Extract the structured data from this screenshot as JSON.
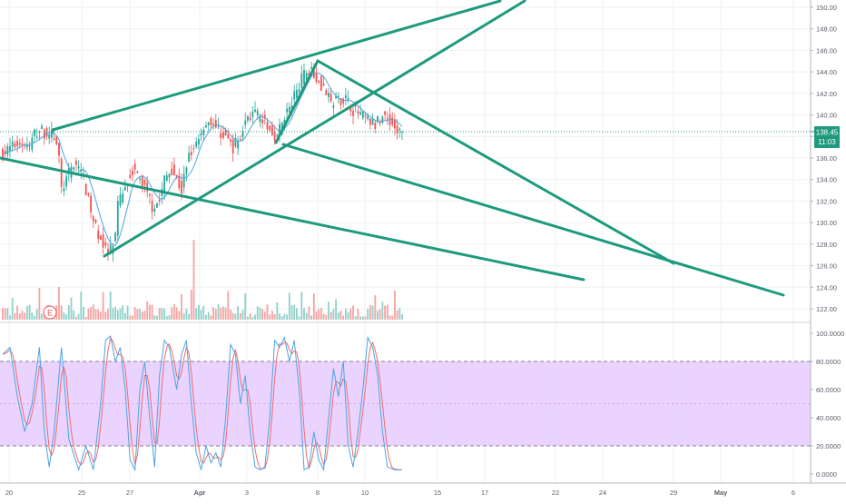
{
  "colors": {
    "up": "#26a69a",
    "down": "#ef5350",
    "vol_up": "#8fd1c9",
    "vol_down": "#f5a3a1",
    "ma": "#4fa3e0",
    "trendline": "#1e9a7e",
    "stoch_k": "#4fa3e0",
    "stoch_d": "#ef6c6c",
    "stoch_band": "#e3c6ff",
    "grid": "#eef0f3",
    "axis_text": "#5d606b",
    "price_tag": "#1e9a7e",
    "events_marker": "#ef5350"
  },
  "price_axis": {
    "ticks": [
      "150.00",
      "148.00",
      "146.00",
      "144.00",
      "142.00",
      "140.00",
      "138.00",
      "136.00",
      "134.00",
      "132.00",
      "130.00",
      "128.00",
      "126.00",
      "124.00",
      "122.00"
    ]
  },
  "stoch_axis": {
    "ticks": [
      "100.0000",
      "80.0000",
      "60.0000",
      "40.0000",
      "20.0000",
      "0.0000"
    ]
  },
  "time_axis": {
    "labels": [
      "20",
      "25",
      "27",
      "Apr",
      "3",
      "8",
      "10",
      "15",
      "17",
      "22",
      "24",
      "29",
      "May",
      "6"
    ]
  },
  "last_price": {
    "value": "138.45",
    "countdown": "11:03"
  },
  "events_marker": "E",
  "chart_data": [
    {
      "type": "candlestick",
      "x_start": "Mar 16",
      "x_end": "May 6",
      "y_range": [
        121,
        151
      ],
      "bars_per_day": 8,
      "last_price": 138.45,
      "close_path": [
        [
          0,
          136.4
        ],
        [
          7,
          137.5
        ],
        [
          11,
          137.0
        ],
        [
          13,
          138.3
        ],
        [
          16,
          138.5
        ],
        [
          21,
          138.0
        ],
        [
          23,
          136.0
        ],
        [
          24,
          133.0
        ],
        [
          27,
          134.5
        ],
        [
          29,
          135.5
        ],
        [
          32,
          135.0
        ],
        [
          34,
          133.0
        ],
        [
          36,
          131.0
        ],
        [
          38,
          129.5
        ],
        [
          40,
          128.5
        ],
        [
          42,
          127.5
        ],
        [
          43,
          127.0
        ],
        [
          46,
          128.5
        ],
        [
          47,
          131.5
        ],
        [
          50,
          133.5
        ],
        [
          53,
          135.0
        ],
        [
          56,
          134.0
        ],
        [
          59,
          133.0
        ],
        [
          61,
          131.5
        ],
        [
          64,
          132.0
        ],
        [
          66,
          134.0
        ],
        [
          69,
          135.0
        ],
        [
          71,
          134.0
        ],
        [
          73,
          133.0
        ],
        [
          76,
          136.5
        ],
        [
          79,
          137.5
        ],
        [
          82,
          139.0
        ],
        [
          85,
          139.5
        ],
        [
          88,
          138.5
        ],
        [
          91,
          138.0
        ],
        [
          94,
          137.0
        ],
        [
          97,
          138.0
        ],
        [
          100,
          140.0
        ],
        [
          103,
          140.0
        ],
        [
          106,
          139.5
        ],
        [
          109,
          138.5
        ],
        [
          112,
          138.0
        ],
        [
          115,
          140.0
        ],
        [
          118,
          141.0
        ],
        [
          121,
          143.0
        ],
        [
          124,
          144.0
        ],
        [
          126,
          144.5
        ],
        [
          128,
          143.5
        ],
        [
          131,
          142.5
        ],
        [
          134,
          141.0
        ],
        [
          137,
          141.5
        ],
        [
          140,
          141.5
        ],
        [
          143,
          140.5
        ],
        [
          146,
          140.0
        ],
        [
          149,
          139.5
        ],
        [
          152,
          139.0
        ],
        [
          155,
          140.0
        ],
        [
          158,
          139.5
        ],
        [
          161,
          138.5
        ],
        [
          163,
          138.45
        ]
      ],
      "volume_spike_bar": 78
    },
    {
      "type": "line",
      "name": "Stochastic",
      "y_range": [
        0,
        100
      ],
      "bands": [
        20,
        80
      ],
      "k_path": [
        [
          0,
          85
        ],
        [
          3,
          90
        ],
        [
          6,
          55
        ],
        [
          9,
          30
        ],
        [
          12,
          50
        ],
        [
          15,
          90
        ],
        [
          17,
          30
        ],
        [
          19,
          5
        ],
        [
          21,
          30
        ],
        [
          24,
          90
        ],
        [
          27,
          25
        ],
        [
          31,
          3
        ],
        [
          34,
          20
        ],
        [
          37,
          3
        ],
        [
          40,
          50
        ],
        [
          42,
          95
        ],
        [
          44,
          98
        ],
        [
          46,
          80
        ],
        [
          48,
          90
        ],
        [
          50,
          60
        ],
        [
          52,
          10
        ],
        [
          54,
          3
        ],
        [
          56,
          60
        ],
        [
          58,
          80
        ],
        [
          60,
          40
        ],
        [
          62,
          5
        ],
        [
          64,
          70
        ],
        [
          66,
          95
        ],
        [
          68,
          90
        ],
        [
          71,
          60
        ],
        [
          73,
          85
        ],
        [
          75,
          95
        ],
        [
          77,
          50
        ],
        [
          79,
          15
        ],
        [
          81,
          3
        ],
        [
          83,
          20
        ],
        [
          85,
          8
        ],
        [
          87,
          15
        ],
        [
          89,
          5
        ],
        [
          91,
          40
        ],
        [
          93,
          92
        ],
        [
          95,
          85
        ],
        [
          97,
          50
        ],
        [
          99,
          70
        ],
        [
          101,
          30
        ],
        [
          103,
          5
        ],
        [
          105,
          3
        ],
        [
          107,
          5
        ],
        [
          109,
          40
        ],
        [
          111,
          95
        ],
        [
          113,
          90
        ],
        [
          115,
          97
        ],
        [
          117,
          80
        ],
        [
          119,
          95
        ],
        [
          121,
          60
        ],
        [
          123,
          3
        ],
        [
          125,
          5
        ],
        [
          127,
          30
        ],
        [
          129,
          10
        ],
        [
          131,
          3
        ],
        [
          133,
          40
        ],
        [
          135,
          75
        ],
        [
          137,
          55
        ],
        [
          139,
          80
        ],
        [
          141,
          20
        ],
        [
          143,
          5
        ],
        [
          145,
          30
        ],
        [
          147,
          60
        ],
        [
          149,
          97
        ],
        [
          151,
          90
        ],
        [
          153,
          70
        ],
        [
          155,
          30
        ],
        [
          157,
          5
        ],
        [
          160,
          3
        ]
      ]
    }
  ]
}
